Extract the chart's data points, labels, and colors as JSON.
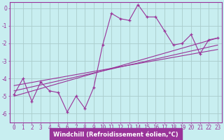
{
  "title": "",
  "xlabel": "Windchill (Refroidissement éolien,°C)",
  "bg_color": "#c8eef0",
  "line_color": "#993399",
  "grid_color": "#aacccc",
  "xlabel_bg": "#993399",
  "xlabel_fg": "#ffffff",
  "ylim": [
    -6.5,
    0.35
  ],
  "xlim": [
    -0.5,
    23.5
  ],
  "yticks": [
    0,
    -1,
    -2,
    -3,
    -4,
    -5,
    -6
  ],
  "xticks": [
    0,
    1,
    2,
    3,
    4,
    5,
    6,
    7,
    8,
    9,
    10,
    11,
    12,
    13,
    14,
    15,
    16,
    17,
    18,
    19,
    20,
    21,
    22,
    23
  ],
  "main_data_x": [
    0,
    1,
    2,
    3,
    4,
    5,
    6,
    7,
    8,
    9,
    10,
    11,
    12,
    13,
    14,
    15,
    16,
    17,
    18,
    19,
    20,
    21,
    22,
    23
  ],
  "main_data_y": [
    -4.9,
    -4.0,
    -5.3,
    -4.2,
    -4.7,
    -4.8,
    -5.9,
    -5.0,
    -5.7,
    -4.5,
    -2.1,
    -0.3,
    -0.6,
    -0.7,
    0.2,
    -0.5,
    -0.5,
    -1.3,
    -2.1,
    -2.0,
    -1.5,
    -2.6,
    -1.8,
    -1.7
  ],
  "trend1_x": [
    0,
    23
  ],
  "trend1_y": [
    -5.0,
    -1.7
  ],
  "trend2_x": [
    0,
    23
  ],
  "trend2_y": [
    -4.7,
    -2.1
  ],
  "trend3_x": [
    0,
    23
  ],
  "trend3_y": [
    -4.4,
    -2.35
  ],
  "tick_fontsize": 5.5,
  "xlabel_fontsize": 6.0
}
